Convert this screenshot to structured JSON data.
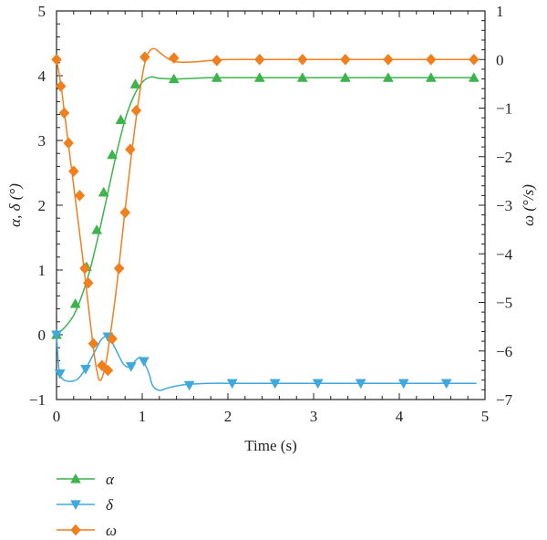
{
  "chart_data": {
    "type": "line",
    "xlabel": "Time (s)",
    "ylabel_left": "α, δ (°)",
    "ylabel_right": "ω (°/s)",
    "xlim": [
      0,
      5
    ],
    "ylim_left": [
      -1,
      5
    ],
    "ylim_right": [
      -7,
      1
    ],
    "xticks": [
      "0",
      "1",
      "2",
      "3",
      "4",
      "5"
    ],
    "yticks_left": [
      "−1",
      "0",
      "1",
      "2",
      "3",
      "4",
      "5"
    ],
    "yticks_right": [
      "−7",
      "−6",
      "−5",
      "−4",
      "−3",
      "−2",
      "−1",
      "0",
      "1"
    ],
    "grid": false,
    "legend_position": "bottom-left, below plot",
    "series": [
      {
        "name": "α",
        "axis": "left",
        "color": "#3cb44b",
        "marker": "triangle-up",
        "x": [
          0,
          0.1,
          0.2,
          0.3,
          0.4,
          0.5,
          0.6,
          0.7,
          0.8,
          0.9,
          1.0,
          1.1,
          1.2,
          1.4,
          1.6,
          1.8,
          2.0,
          2.5,
          3.0,
          3.5,
          4.0,
          4.5,
          4.9
        ],
        "y": [
          0,
          0.12,
          0.3,
          0.62,
          1.05,
          1.6,
          2.2,
          2.8,
          3.32,
          3.68,
          3.9,
          3.98,
          3.96,
          3.95,
          3.96,
          3.97,
          3.97,
          3.97,
          3.97,
          3.97,
          3.97,
          3.97,
          3.97
        ],
        "markers_x": [
          0,
          0.22,
          0.35,
          0.47,
          0.55,
          0.65,
          0.75,
          0.92,
          1.37,
          1.87,
          2.37,
          2.87,
          3.37,
          3.87,
          4.37,
          4.87
        ],
        "markers_y": [
          0,
          0.48,
          1.05,
          1.62,
          2.2,
          2.78,
          3.32,
          3.87,
          3.95,
          3.97,
          3.97,
          3.97,
          3.97,
          3.97,
          3.97,
          3.97
        ]
      },
      {
        "name": "δ",
        "axis": "left",
        "color": "#3fa9dd",
        "marker": "triangle-down",
        "x": [
          0,
          0.03,
          0.07,
          0.15,
          0.25,
          0.35,
          0.45,
          0.52,
          0.58,
          0.62,
          0.7,
          0.78,
          0.85,
          0.92,
          0.98,
          1.03,
          1.08,
          1.12,
          1.2,
          1.3,
          1.5,
          1.8,
          2.0,
          2.5,
          3.0,
          4.0,
          4.9
        ],
        "y": [
          0,
          -0.55,
          -0.68,
          -0.72,
          -0.68,
          -0.5,
          -0.25,
          -0.08,
          -0.02,
          -0.05,
          -0.25,
          -0.45,
          -0.5,
          -0.4,
          -0.35,
          -0.45,
          -0.6,
          -0.78,
          -0.86,
          -0.82,
          -0.77,
          -0.75,
          -0.75,
          -0.75,
          -0.75,
          -0.75,
          -0.75
        ],
        "markers_x": [
          0,
          0.04,
          0.34,
          0.6,
          0.87,
          1.02,
          1.55,
          2.05,
          2.55,
          3.05,
          3.55,
          4.05,
          4.55
        ],
        "markers_y": [
          0,
          -0.6,
          -0.53,
          -0.03,
          -0.49,
          -0.41,
          -0.78,
          -0.75,
          -0.75,
          -0.75,
          -0.75,
          -0.75,
          -0.75
        ]
      },
      {
        "name": "ω",
        "axis": "right",
        "color": "#f07f1d",
        "marker": "diamond",
        "x": [
          0,
          0.05,
          0.1,
          0.2,
          0.3,
          0.4,
          0.45,
          0.5,
          0.55,
          0.6,
          0.7,
          0.8,
          0.9,
          1.0,
          1.05,
          1.1,
          1.15,
          1.2,
          1.3,
          1.4,
          1.6,
          1.8,
          2.0,
          2.5,
          3.0,
          4.0,
          4.9
        ],
        "y": [
          0,
          -0.5,
          -1.2,
          -2.6,
          -4.0,
          -5.5,
          -6.2,
          -6.6,
          -6.45,
          -6.0,
          -4.7,
          -3.1,
          -1.6,
          -0.35,
          0.05,
          0.2,
          0.22,
          0.15,
          0.02,
          -0.05,
          -0.05,
          -0.02,
          0,
          0,
          0,
          0,
          0
        ],
        "markers_x": [
          0,
          0.05,
          0.09,
          0.14,
          0.2,
          0.27,
          0.33,
          0.37,
          0.43,
          0.53,
          0.6,
          0.65,
          0.73,
          0.8,
          0.86,
          0.93,
          1.03,
          1.37,
          1.87,
          2.37,
          2.87,
          3.37,
          3.87,
          4.37,
          4.87
        ],
        "markers_y": [
          0,
          -0.55,
          -1.1,
          -1.72,
          -2.3,
          -2.8,
          -4.3,
          -4.6,
          -5.85,
          -6.3,
          -6.4,
          -5.75,
          -4.3,
          -3.15,
          -1.85,
          -1.05,
          0.05,
          0.03,
          -0.02,
          0,
          0,
          0,
          0,
          0,
          0
        ]
      }
    ]
  }
}
